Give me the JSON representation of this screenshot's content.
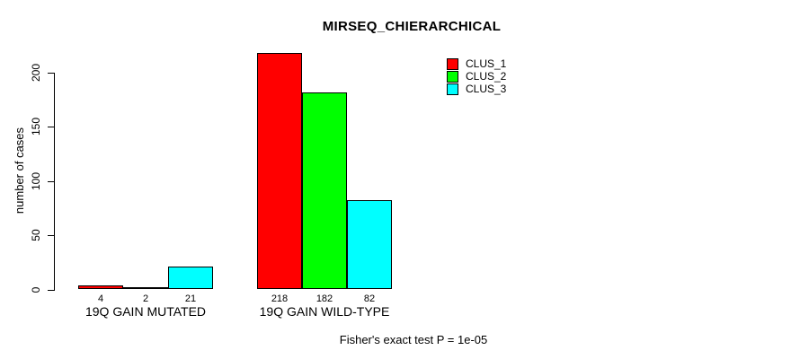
{
  "chart_data": {
    "type": "bar",
    "title": "MIRSEQ_CHIERARCHICAL",
    "ylabel": "number of cases",
    "xlabel": "",
    "yticks": [
      0,
      50,
      100,
      150,
      200
    ],
    "ylim": [
      0,
      225
    ],
    "grid": false,
    "show_bar_values": true,
    "bar_border_color": "#000000",
    "categories": [
      "19Q GAIN MUTATED",
      "19Q GAIN WILD-TYPE"
    ],
    "series": [
      {
        "name": "CLUS_1",
        "color": "#ff0000",
        "values": [
          4,
          218
        ]
      },
      {
        "name": "CLUS_2",
        "color": "#00ff00",
        "values": [
          2,
          182
        ]
      },
      {
        "name": "CLUS_3",
        "color": "#00ffff",
        "values": [
          21,
          82
        ]
      }
    ],
    "legend_position": "top-right"
  },
  "footer": {
    "text": "Fisher's exact test P = 1e-05"
  }
}
